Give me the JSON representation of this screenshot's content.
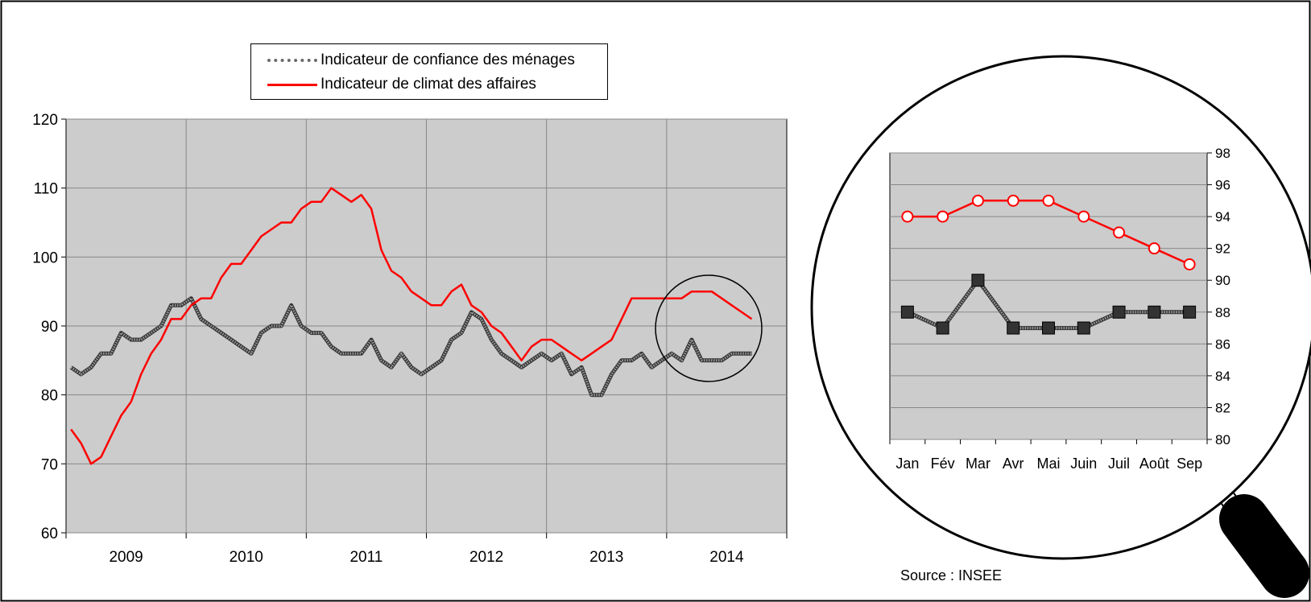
{
  "legend": {
    "households": "Indicateur de confiance des ménages",
    "business": "Indicateur de climat des affaires"
  },
  "source": "Source : INSEE",
  "colors": {
    "households": "#6e6e6e",
    "business": "#ff0000",
    "plot_bg": "#cccccc",
    "grid": "#888888"
  },
  "chart_data": [
    {
      "type": "line",
      "x_axis": "monthly, Jan 2009 – Sep 2014",
      "x_tick_labels": [
        "2009",
        "2010",
        "2011",
        "2012",
        "2013",
        "2014"
      ],
      "y_tick_labels": [
        "60",
        "70",
        "80",
        "90",
        "100",
        "110",
        "120"
      ],
      "ylim": [
        60,
        120
      ],
      "grid": true,
      "legend_position": "top-center",
      "series": [
        {
          "name": "Indicateur de confiance des ménages",
          "values": [
            84,
            83,
            84,
            86,
            86,
            89,
            88,
            88,
            89,
            90,
            93,
            93,
            94,
            91,
            90,
            89,
            88,
            87,
            86,
            89,
            90,
            90,
            93,
            90,
            89,
            89,
            87,
            86,
            86,
            86,
            88,
            85,
            84,
            86,
            84,
            83,
            84,
            85,
            88,
            89,
            92,
            91,
            88,
            86,
            85,
            84,
            85,
            86,
            85,
            86,
            83,
            84,
            80,
            80,
            83,
            85,
            85,
            86,
            84,
            85,
            86,
            85,
            88,
            85,
            85,
            85,
            86,
            86,
            86
          ]
        },
        {
          "name": "Indicateur de climat des affaires",
          "values": [
            75,
            73,
            70,
            71,
            74,
            77,
            79,
            83,
            86,
            88,
            91,
            91,
            93,
            94,
            94,
            97,
            99,
            99,
            101,
            103,
            104,
            105,
            105,
            107,
            108,
            108,
            110,
            109,
            108,
            109,
            107,
            101,
            98,
            97,
            95,
            94,
            93,
            93,
            95,
            96,
            93,
            92,
            90,
            89,
            87,
            85,
            87,
            88,
            88,
            87,
            86,
            85,
            86,
            87,
            88,
            91,
            94,
            94,
            94,
            94,
            94,
            94,
            95,
            95,
            95,
            94,
            93,
            92,
            91
          ]
        }
      ]
    },
    {
      "type": "line",
      "categories": [
        "Jan",
        "Fév",
        "Mar",
        "Avr",
        "Mai",
        "Juin",
        "Juil",
        "Août",
        "Sep"
      ],
      "y_tick_labels": [
        "80",
        "82",
        "84",
        "86",
        "88",
        "90",
        "92",
        "94",
        "96",
        "98"
      ],
      "ylim": [
        80,
        98
      ],
      "grid": true,
      "y_axis_side": "right",
      "series": [
        {
          "values": [
            94,
            94,
            95,
            95,
            95,
            94,
            93,
            92,
            91
          ]
        },
        {
          "values": [
            88,
            87,
            90,
            87,
            87,
            87,
            88,
            88,
            88
          ]
        }
      ]
    }
  ]
}
